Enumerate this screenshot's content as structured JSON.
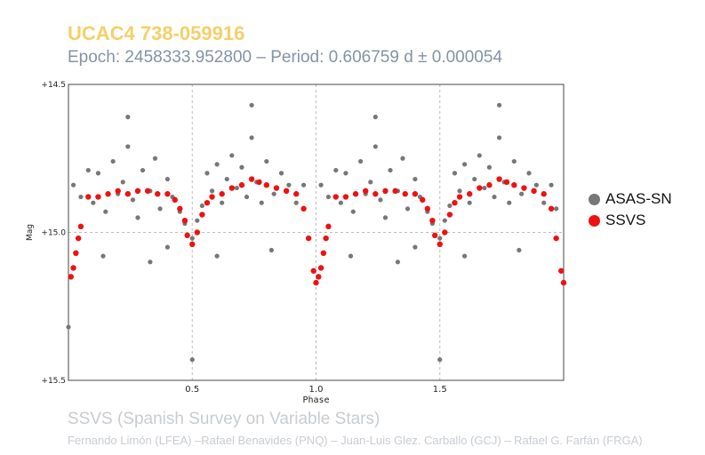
{
  "header": {
    "title": "UCAC4 738-059916",
    "subtitle": "Epoch: 2458333.952800 – Period: 0.606759 d ± 0.000054"
  },
  "footer": {
    "survey": "SSVS (Spanish Survey on Variable Stars)",
    "authors": "Fernando Limón (LFEA) –Rafael Benavides (PNQ) – Juan-Luis Glez. Carballo (GCJ) – Rafael G. Farfán (FRGA)"
  },
  "chart_data": {
    "type": "scatter",
    "xlabel": "Phase",
    "ylabel": "Mag",
    "xlim": [
      0.0,
      2.0
    ],
    "ylim": [
      15.5,
      14.5
    ],
    "y_inverted": true,
    "x_ticks": [
      "0.5",
      "1.0",
      "1.5"
    ],
    "x_tick_values": [
      0.5,
      1.0,
      1.5
    ],
    "y_ticks": [
      "+14.5",
      "+15.0",
      "+15.5"
    ],
    "y_tick_values": [
      14.5,
      15.0,
      15.5
    ],
    "grid": true,
    "legend_position": "right",
    "series": [
      {
        "name": "ASAS-SN",
        "color": "#777777",
        "points": [
          [
            0.02,
            14.84
          ],
          [
            0.05,
            14.88
          ],
          [
            0.08,
            14.79
          ],
          [
            0.1,
            14.9
          ],
          [
            0.12,
            14.8
          ],
          [
            0.15,
            14.93
          ],
          [
            0.18,
            14.76
          ],
          [
            0.2,
            14.87
          ],
          [
            0.22,
            14.83
          ],
          [
            0.24,
            14.71
          ],
          [
            0.26,
            14.89
          ],
          [
            0.28,
            14.95
          ],
          [
            0.3,
            14.79
          ],
          [
            0.33,
            14.86
          ],
          [
            0.35,
            14.75
          ],
          [
            0.37,
            14.92
          ],
          [
            0.4,
            14.82
          ],
          [
            0.42,
            14.88
          ],
          [
            0.45,
            14.93
          ],
          [
            0.47,
            14.97
          ],
          [
            0.5,
            15.02
          ],
          [
            0.52,
            14.96
          ],
          [
            0.54,
            14.91
          ],
          [
            0.56,
            14.8
          ],
          [
            0.58,
            14.86
          ],
          [
            0.6,
            14.77
          ],
          [
            0.62,
            14.9
          ],
          [
            0.64,
            14.82
          ],
          [
            0.66,
            14.74
          ],
          [
            0.68,
            14.85
          ],
          [
            0.7,
            14.78
          ],
          [
            0.72,
            14.88
          ],
          [
            0.74,
            14.68
          ],
          [
            0.76,
            14.83
          ],
          [
            0.78,
            14.9
          ],
          [
            0.8,
            14.76
          ],
          [
            0.83,
            14.87
          ],
          [
            0.86,
            14.8
          ],
          [
            0.89,
            14.84
          ],
          [
            0.92,
            14.9
          ],
          [
            0.95,
            14.84
          ],
          [
            0.24,
            14.61
          ],
          [
            0.74,
            14.57
          ],
          [
            0.5,
            15.43
          ],
          [
            0.0,
            15.32
          ],
          [
            0.14,
            15.08
          ],
          [
            0.33,
            15.1
          ],
          [
            0.6,
            15.08
          ],
          [
            0.82,
            15.06
          ],
          [
            0.4,
            15.05
          ],
          [
            1.02,
            14.84
          ],
          [
            1.05,
            14.88
          ],
          [
            1.08,
            14.79
          ],
          [
            1.1,
            14.9
          ],
          [
            1.12,
            14.8
          ],
          [
            1.15,
            14.93
          ],
          [
            1.18,
            14.76
          ],
          [
            1.2,
            14.87
          ],
          [
            1.22,
            14.83
          ],
          [
            1.24,
            14.71
          ],
          [
            1.26,
            14.89
          ],
          [
            1.28,
            14.95
          ],
          [
            1.3,
            14.79
          ],
          [
            1.33,
            14.86
          ],
          [
            1.35,
            14.75
          ],
          [
            1.37,
            14.92
          ],
          [
            1.4,
            14.82
          ],
          [
            1.42,
            14.88
          ],
          [
            1.45,
            14.93
          ],
          [
            1.47,
            14.97
          ],
          [
            1.5,
            15.02
          ],
          [
            1.52,
            14.96
          ],
          [
            1.54,
            14.91
          ],
          [
            1.56,
            14.8
          ],
          [
            1.58,
            14.86
          ],
          [
            1.6,
            14.77
          ],
          [
            1.62,
            14.9
          ],
          [
            1.64,
            14.82
          ],
          [
            1.66,
            14.74
          ],
          [
            1.68,
            14.85
          ],
          [
            1.7,
            14.78
          ],
          [
            1.72,
            14.88
          ],
          [
            1.74,
            14.68
          ],
          [
            1.76,
            14.83
          ],
          [
            1.78,
            14.9
          ],
          [
            1.8,
            14.76
          ],
          [
            1.83,
            14.87
          ],
          [
            1.86,
            14.8
          ],
          [
            1.89,
            14.84
          ],
          [
            1.92,
            14.9
          ],
          [
            1.95,
            14.84
          ],
          [
            1.24,
            14.61
          ],
          [
            1.74,
            14.57
          ],
          [
            1.5,
            15.43
          ],
          [
            1.14,
            15.08
          ],
          [
            1.33,
            15.1
          ],
          [
            1.6,
            15.08
          ],
          [
            1.82,
            15.06
          ],
          [
            1.4,
            15.05
          ],
          [
            1.97,
            14.92
          ]
        ]
      },
      {
        "name": "SSVS",
        "color": "#ee1111",
        "points": [
          [
            0.01,
            15.15
          ],
          [
            0.02,
            15.12
          ],
          [
            0.03,
            15.07
          ],
          [
            0.04,
            15.02
          ],
          [
            0.05,
            14.98
          ],
          [
            0.08,
            14.88
          ],
          [
            0.12,
            14.88
          ],
          [
            0.16,
            14.87
          ],
          [
            0.2,
            14.86
          ],
          [
            0.24,
            14.87
          ],
          [
            0.28,
            14.86
          ],
          [
            0.32,
            14.86
          ],
          [
            0.36,
            14.87
          ],
          [
            0.4,
            14.87
          ],
          [
            0.43,
            14.89
          ],
          [
            0.45,
            14.92
          ],
          [
            0.47,
            14.96
          ],
          [
            0.48,
            15.01
          ],
          [
            0.5,
            15.04
          ],
          [
            0.52,
            15.0
          ],
          [
            0.54,
            14.94
          ],
          [
            0.56,
            14.9
          ],
          [
            0.58,
            14.88
          ],
          [
            0.62,
            14.87
          ],
          [
            0.66,
            14.85
          ],
          [
            0.7,
            14.84
          ],
          [
            0.74,
            14.82
          ],
          [
            0.77,
            14.83
          ],
          [
            0.8,
            14.84
          ],
          [
            0.84,
            14.85
          ],
          [
            0.88,
            14.86
          ],
          [
            0.92,
            14.87
          ],
          [
            0.95,
            14.92
          ],
          [
            0.97,
            15.02
          ],
          [
            0.99,
            15.13
          ],
          [
            1.0,
            15.17
          ],
          [
            1.01,
            15.15
          ],
          [
            1.02,
            15.12
          ],
          [
            1.03,
            15.07
          ],
          [
            1.04,
            15.02
          ],
          [
            1.05,
            14.98
          ],
          [
            1.08,
            14.88
          ],
          [
            1.12,
            14.88
          ],
          [
            1.16,
            14.87
          ],
          [
            1.2,
            14.86
          ],
          [
            1.24,
            14.87
          ],
          [
            1.28,
            14.86
          ],
          [
            1.32,
            14.86
          ],
          [
            1.36,
            14.87
          ],
          [
            1.4,
            14.87
          ],
          [
            1.43,
            14.89
          ],
          [
            1.45,
            14.92
          ],
          [
            1.47,
            14.96
          ],
          [
            1.48,
            15.01
          ],
          [
            1.5,
            15.04
          ],
          [
            1.52,
            15.0
          ],
          [
            1.54,
            14.94
          ],
          [
            1.56,
            14.9
          ],
          [
            1.58,
            14.88
          ],
          [
            1.62,
            14.87
          ],
          [
            1.66,
            14.85
          ],
          [
            1.7,
            14.84
          ],
          [
            1.74,
            14.82
          ],
          [
            1.77,
            14.83
          ],
          [
            1.8,
            14.84
          ],
          [
            1.84,
            14.85
          ],
          [
            1.88,
            14.86
          ],
          [
            1.92,
            14.87
          ],
          [
            1.95,
            14.92
          ],
          [
            1.97,
            15.02
          ],
          [
            1.99,
            15.13
          ],
          [
            2.0,
            15.17
          ]
        ]
      }
    ]
  }
}
